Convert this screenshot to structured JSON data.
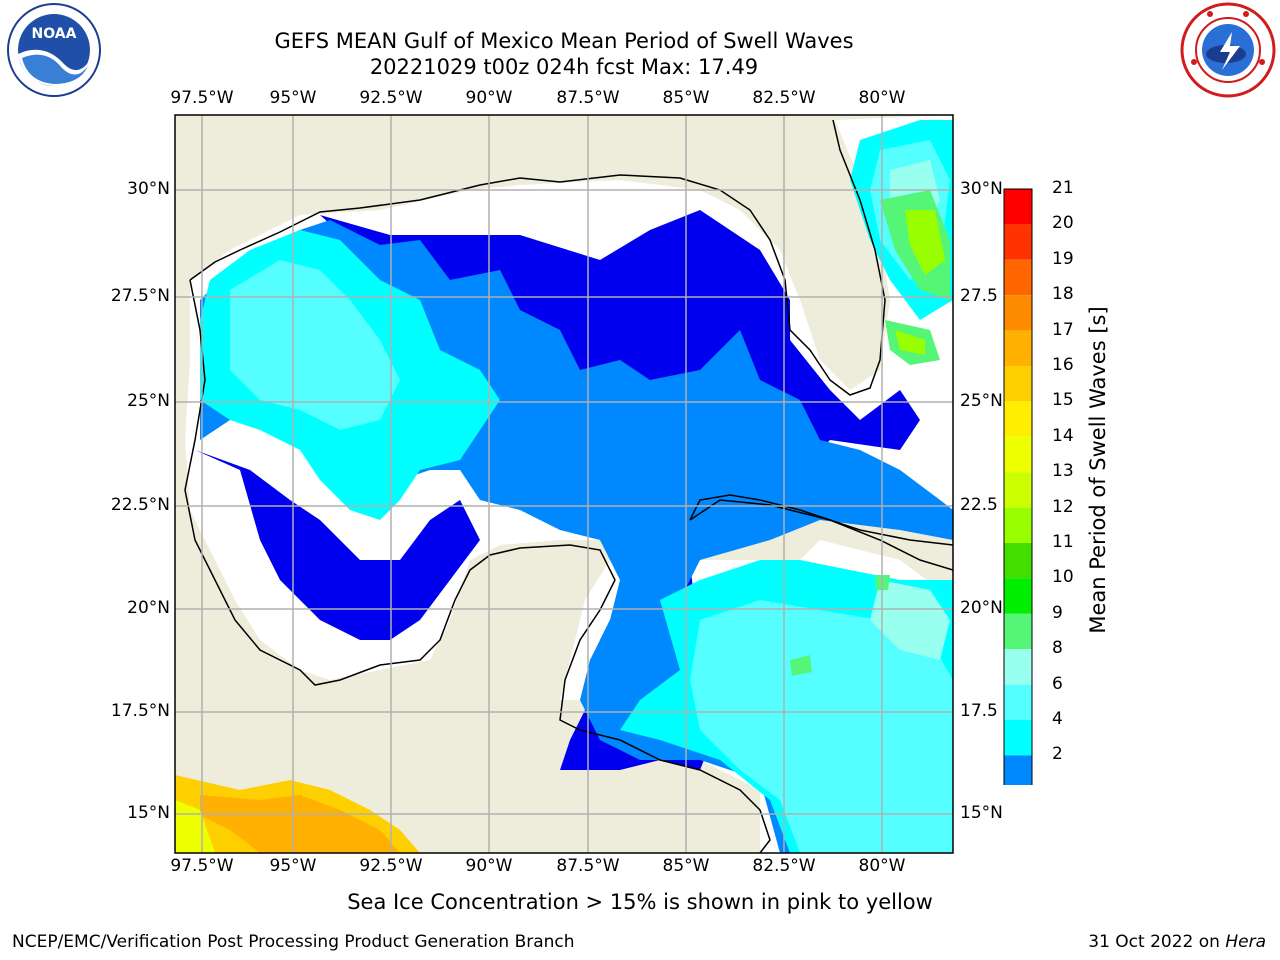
{
  "title_line1": "GEFS MEAN Gulf of Mexico Mean Period of Swell Waves",
  "title_line2": "20221029 t00z 024h fcst   Max: 17.49",
  "logos": {
    "left": "noaa-logo",
    "right": "nws-logo"
  },
  "map": {
    "lon_labels": [
      "97.5°W",
      "95°W",
      "92.5°W",
      "90°W",
      "87.5°W",
      "85°W",
      "82.5°W",
      "80°W"
    ],
    "lat_labels_left": [
      "30°N",
      "27.5°N",
      "25°N",
      "22.5°N",
      "20°N",
      "17.5°N",
      "15°N"
    ],
    "lat_labels_right": [
      "30°N",
      "27.5",
      "25°N",
      "22.5",
      "20°N",
      "17.5",
      "15°N"
    ],
    "land_color": "#eeecdb",
    "grid_color": "#b0b0b0"
  },
  "colorbar": {
    "label": "Mean Period of Swell Waves [s]",
    "ticks": [
      "21",
      "20",
      "19",
      "18",
      "17",
      "16",
      "15",
      "14",
      "13",
      "12",
      "11",
      "10",
      "9",
      "8",
      "6",
      "4",
      "2"
    ],
    "colors": [
      "#ff0000",
      "#ff3300",
      "#ff6600",
      "#ff8c00",
      "#ffb000",
      "#ffd000",
      "#ffee00",
      "#eeff00",
      "#ccff00",
      "#99ff00",
      "#44dd00",
      "#00ee00",
      "#55f577",
      "#99ffee",
      "#55ffff",
      "#00ffff",
      "#0088ff",
      "#0000ee"
    ]
  },
  "note": "Sea Ice Concentration > 15% is shown in pink to yellow",
  "footer_left": "NCEP/EMC/Verification Post Processing Product Generation Branch",
  "footer_right_prefix": "31 Oct 2022 on ",
  "footer_right_host": "Hera"
}
